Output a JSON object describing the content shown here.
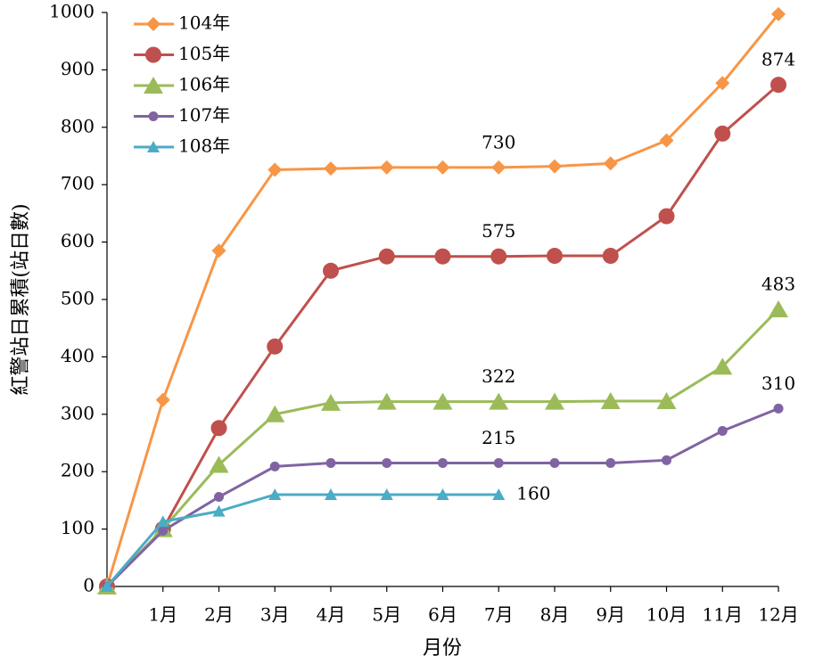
{
  "chart_data": {
    "type": "line",
    "ylabel": "紅警站日累積(站日數)",
    "xlabel": "月份",
    "categories": [
      null,
      "1月",
      "2月",
      "3月",
      "4月",
      "5月",
      "6月",
      "7月",
      "8月",
      "9月",
      "10月",
      "11月",
      "12月"
    ],
    "ylim": [
      0,
      1000
    ],
    "yticks": [
      0,
      100,
      200,
      300,
      400,
      500,
      600,
      700,
      800,
      900,
      1000
    ],
    "grid": false,
    "legend": "upper left",
    "series": [
      {
        "name": "104年",
        "color": "#f79646",
        "marker": "diamond",
        "values": [
          0,
          325,
          585,
          726,
          728,
          730,
          730,
          730,
          732,
          737,
          777,
          877,
          997
        ],
        "value_labels": [
          null,
          null,
          null,
          null,
          null,
          null,
          null,
          "730",
          null,
          null,
          null,
          null,
          null
        ]
      },
      {
        "name": "105年",
        "color": "#c0504d",
        "marker": "circle",
        "values": [
          0,
          100,
          276,
          418,
          550,
          575,
          575,
          575,
          576,
          576,
          645,
          789,
          874
        ],
        "value_labels": [
          null,
          null,
          null,
          null,
          null,
          null,
          null,
          "575",
          null,
          null,
          null,
          null,
          "874"
        ]
      },
      {
        "name": "106年",
        "color": "#9bbb59",
        "marker": "triangle",
        "values": [
          0,
          100,
          212,
          300,
          320,
          322,
          322,
          322,
          322,
          323,
          323,
          383,
          483
        ],
        "value_labels": [
          null,
          null,
          null,
          null,
          null,
          null,
          null,
          "322",
          null,
          null,
          null,
          null,
          "483"
        ]
      },
      {
        "name": "107年",
        "color": "#8064a2",
        "marker": "small-circle",
        "values": [
          0,
          97,
          156,
          209,
          215,
          215,
          215,
          215,
          215,
          215,
          220,
          271,
          310
        ],
        "value_labels": [
          null,
          null,
          null,
          null,
          null,
          null,
          null,
          "215",
          null,
          null,
          null,
          null,
          "310"
        ]
      },
      {
        "name": "108年",
        "color": "#4bacc6",
        "marker": "small-triangle",
        "values": [
          0,
          113,
          131,
          160,
          160,
          160,
          160,
          160,
          null,
          null,
          null,
          null,
          null
        ],
        "value_labels": [
          null,
          null,
          null,
          null,
          null,
          null,
          null,
          "160",
          null,
          null,
          null,
          null,
          null
        ]
      }
    ]
  }
}
